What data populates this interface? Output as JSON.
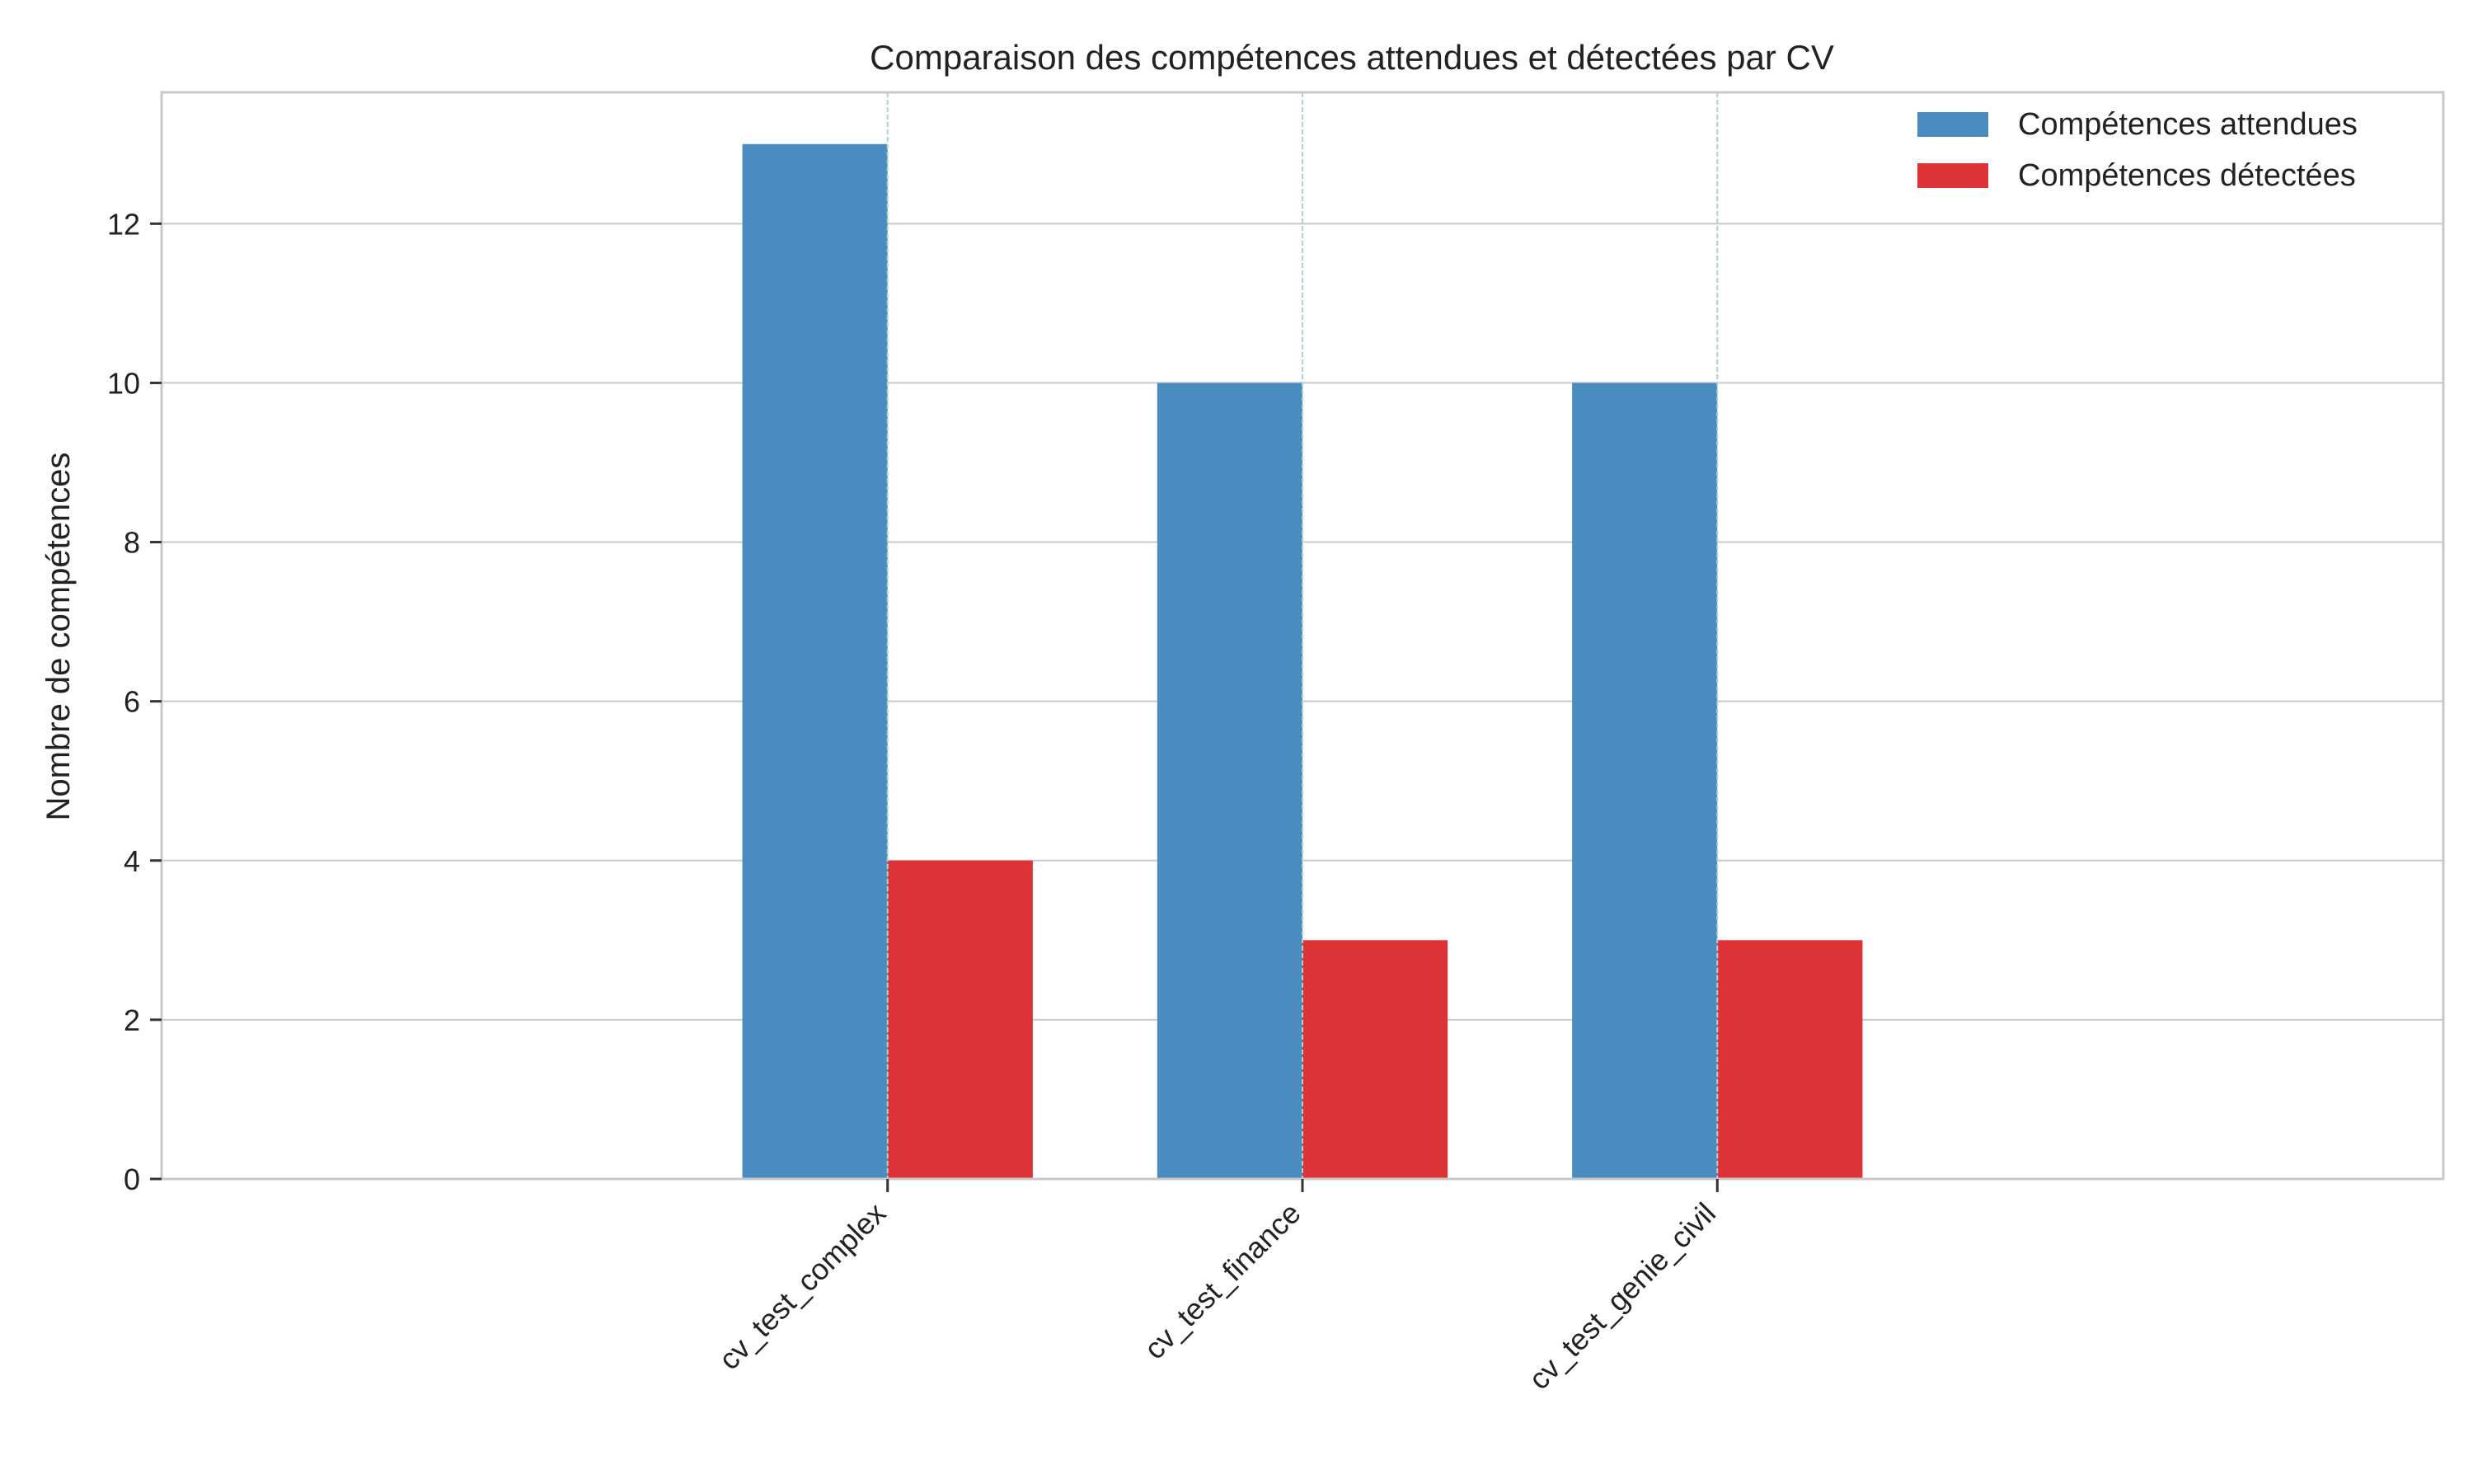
{
  "chart_data": {
    "type": "bar",
    "title": "Comparaison des compétences attendues et détectées par CV",
    "xlabel": "",
    "ylabel": "Nombre de compétences",
    "categories": [
      "cv_test_complex",
      "cv_test_finance",
      "cv_test_genie_civil"
    ],
    "series": [
      {
        "name": "Compétences attendues",
        "values": [
          13,
          10,
          10
        ],
        "color": "#4a8bc0"
      },
      {
        "name": "Compétences détectées",
        "values": [
          4,
          3,
          3
        ],
        "color": "#dd3236"
      }
    ],
    "ylim": [
      0,
      13.65
    ],
    "yticks": [
      0,
      2,
      4,
      6,
      8,
      10,
      12
    ],
    "grid": true,
    "legend_position": "top-right",
    "category_separator_color": "#a8d4d4"
  }
}
